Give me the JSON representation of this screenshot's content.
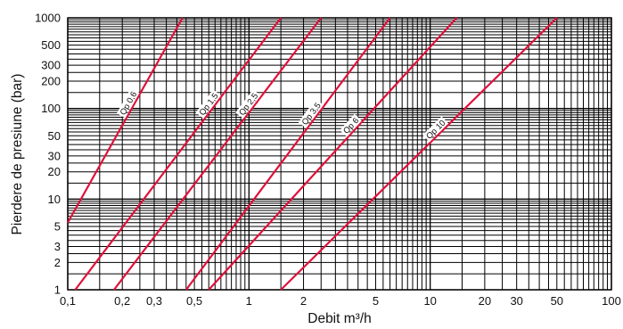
{
  "chart_data": {
    "type": "line",
    "title": "",
    "xlabel": "Debit m³/h",
    "ylabel": "Pierdere de presiune (bar)",
    "x_scale": "log",
    "y_scale": "log",
    "xlim": [
      0.1,
      100
    ],
    "ylim": [
      1,
      1000
    ],
    "grid": true,
    "line_color": "#e0103a",
    "grid_color": "#000000",
    "x_ticks": [
      {
        "value": 0.1,
        "label": "0,1"
      },
      {
        "value": 0.2,
        "label": "0,2"
      },
      {
        "value": 0.3,
        "label": "0,3"
      },
      {
        "value": 0.5,
        "label": "0,5"
      },
      {
        "value": 1,
        "label": "1"
      },
      {
        "value": 2,
        "label": "2"
      },
      {
        "value": 5,
        "label": "5"
      },
      {
        "value": 10,
        "label": "10"
      },
      {
        "value": 20,
        "label": "20"
      },
      {
        "value": 30,
        "label": "30"
      },
      {
        "value": 50,
        "label": "50"
      },
      {
        "value": 100,
        "label": "100"
      }
    ],
    "y_ticks": [
      {
        "value": 1,
        "label": "1"
      },
      {
        "value": 2,
        "label": "2"
      },
      {
        "value": 3,
        "label": "3"
      },
      {
        "value": 5,
        "label": "5"
      },
      {
        "value": 10,
        "label": "10"
      },
      {
        "value": 20,
        "label": "20"
      },
      {
        "value": 30,
        "label": "30"
      },
      {
        "value": 50,
        "label": "50"
      },
      {
        "value": 100,
        "label": "100"
      },
      {
        "value": 200,
        "label": "200"
      },
      {
        "value": 300,
        "label": "300"
      },
      {
        "value": 500,
        "label": "500"
      },
      {
        "value": 1000,
        "label": "1000"
      }
    ],
    "series": [
      {
        "name": "Qp 0,6",
        "x": [
          0.1,
          0.43
        ],
        "y": [
          5.5,
          1000
        ],
        "label_at": 0.57
      },
      {
        "name": "Qp 1,5",
        "x": [
          0.11,
          1.5
        ],
        "y": [
          1,
          1000
        ],
        "label_at": 0.67
      },
      {
        "name": "Qp 2,5",
        "x": [
          0.18,
          2.5
        ],
        "y": [
          1,
          1000
        ],
        "label_at": 0.67
      },
      {
        "name": "Qp 3,5",
        "x": [
          0.45,
          6
        ],
        "y": [
          1,
          1000
        ],
        "label_at": 0.635
      },
      {
        "name": "Qp 6",
        "x": [
          0.6,
          14
        ],
        "y": [
          1,
          1000
        ],
        "label_at": 0.59
      },
      {
        "name": "Qp 10",
        "x": [
          1.5,
          50
        ],
        "y": [
          1,
          1000
        ],
        "label_at": 0.575
      }
    ]
  }
}
